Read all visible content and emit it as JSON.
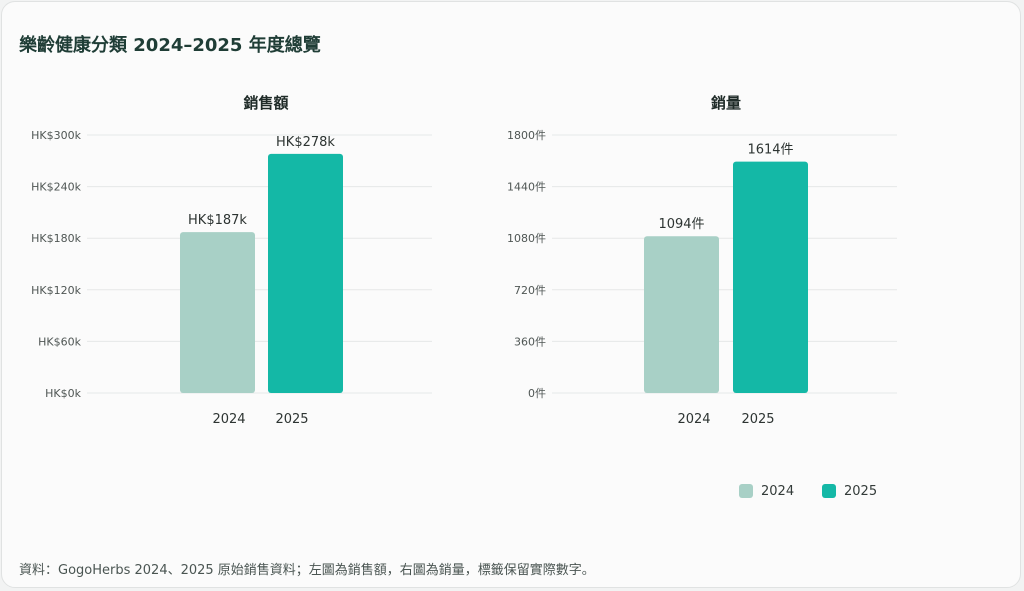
{
  "title": "樂齡健康分類 2024–2025 年度總覽",
  "footer": "資料：GogoHerbs 2024、2025 原始銷售資料；左圖為銷售額，右圖為銷量，標籤保留實際數字。",
  "colors": {
    "2024": "#a8d0c6",
    "2025": "#14b8a6",
    "grid": "#e6e8e8",
    "text": "#2d3432"
  },
  "legend": [
    {
      "label": "2024",
      "color": "#a8d0c6"
    },
    {
      "label": "2025",
      "color": "#14b8a6"
    }
  ],
  "chart_data": [
    {
      "type": "bar",
      "title": "銷售額",
      "categories": [
        "2024",
        "2025"
      ],
      "values": [
        187,
        278
      ],
      "value_labels": [
        "HK$187k",
        "HK$278k"
      ],
      "ylim": [
        0,
        300
      ],
      "yticks": [
        0,
        60,
        120,
        180,
        240,
        300
      ],
      "ytick_labels": [
        "HK$0k",
        "HK$60k",
        "HK$120k",
        "HK$180k",
        "HK$240k",
        "HK$300k"
      ],
      "grid": true
    },
    {
      "type": "bar",
      "title": "銷量",
      "categories": [
        "2024",
        "2025"
      ],
      "values": [
        1094,
        1614
      ],
      "value_labels": [
        "1094件",
        "1614件"
      ],
      "ylim": [
        0,
        1800
      ],
      "yticks": [
        0,
        360,
        720,
        1080,
        1440,
        1800
      ],
      "ytick_labels": [
        "0件",
        "360件",
        "720件",
        "1080件",
        "1440件",
        "1800件"
      ],
      "grid": true
    }
  ]
}
